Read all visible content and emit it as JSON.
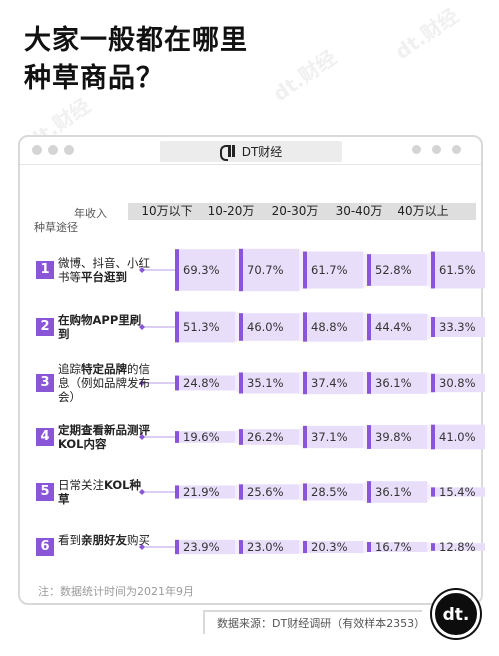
{
  "title_line1": "大家一般都在哪里",
  "title_line2": "种草商品？",
  "brand": "DT财经",
  "corner_top": "年收入",
  "corner_bottom": "种草途径",
  "note": "注：数据统计时间为2021年9月",
  "source": "数据来源：DT财经调研（有效样本2353）",
  "logo_text": "dt.",
  "watermark_text": "dt.财经",
  "colors": {
    "accent": "#8a56d8",
    "light": "#e9defa",
    "header": "#dedede"
  },
  "chart_data": {
    "type": "table",
    "columns": [
      "10万以下",
      "10-20万",
      "20-30万",
      "30-40万",
      "40万以上"
    ],
    "rows": [
      {
        "num": "1",
        "label_parts": [
          "微博、抖音、小红书等",
          "平台逛到"
        ],
        "values": [
          69.3,
          70.7,
          61.7,
          52.8,
          61.5
        ],
        "labels": [
          "69.3%",
          "70.7%",
          "61.7%",
          "52.8%",
          "61.5%"
        ]
      },
      {
        "num": "2",
        "label_parts": [
          "",
          "在购物APP里刷到"
        ],
        "values": [
          51.3,
          46.0,
          48.8,
          44.4,
          33.3
        ],
        "labels": [
          "51.3%",
          "46.0%",
          "48.8%",
          "44.4%",
          "33.3%"
        ]
      },
      {
        "num": "3",
        "label_parts": [
          "追踪",
          "特定品牌",
          "的信息（例如品牌发布会）"
        ],
        "values": [
          24.8,
          35.1,
          37.4,
          36.1,
          30.8
        ],
        "labels": [
          "24.8%",
          "35.1%",
          "37.4%",
          "36.1%",
          "30.8%"
        ]
      },
      {
        "num": "4",
        "label_parts": [
          "",
          "定期查看新品测评KOL内容"
        ],
        "values": [
          19.6,
          26.2,
          37.1,
          39.8,
          41.0
        ],
        "labels": [
          "19.6%",
          "26.2%",
          "37.1%",
          "39.8%",
          "41.0%"
        ]
      },
      {
        "num": "5",
        "label_parts": [
          "日常关注",
          "KOL种草"
        ],
        "values": [
          21.9,
          25.6,
          28.5,
          36.1,
          15.4
        ],
        "labels": [
          "21.9%",
          "25.6%",
          "28.5%",
          "36.1%",
          "15.4%"
        ]
      },
      {
        "num": "6",
        "label_parts": [
          "看到",
          "亲朋好友",
          "购买"
        ],
        "values": [
          23.9,
          23.0,
          20.3,
          16.7,
          12.8
        ],
        "labels": [
          "23.9%",
          "23.0%",
          "20.3%",
          "16.7%",
          "12.8%"
        ]
      }
    ]
  }
}
